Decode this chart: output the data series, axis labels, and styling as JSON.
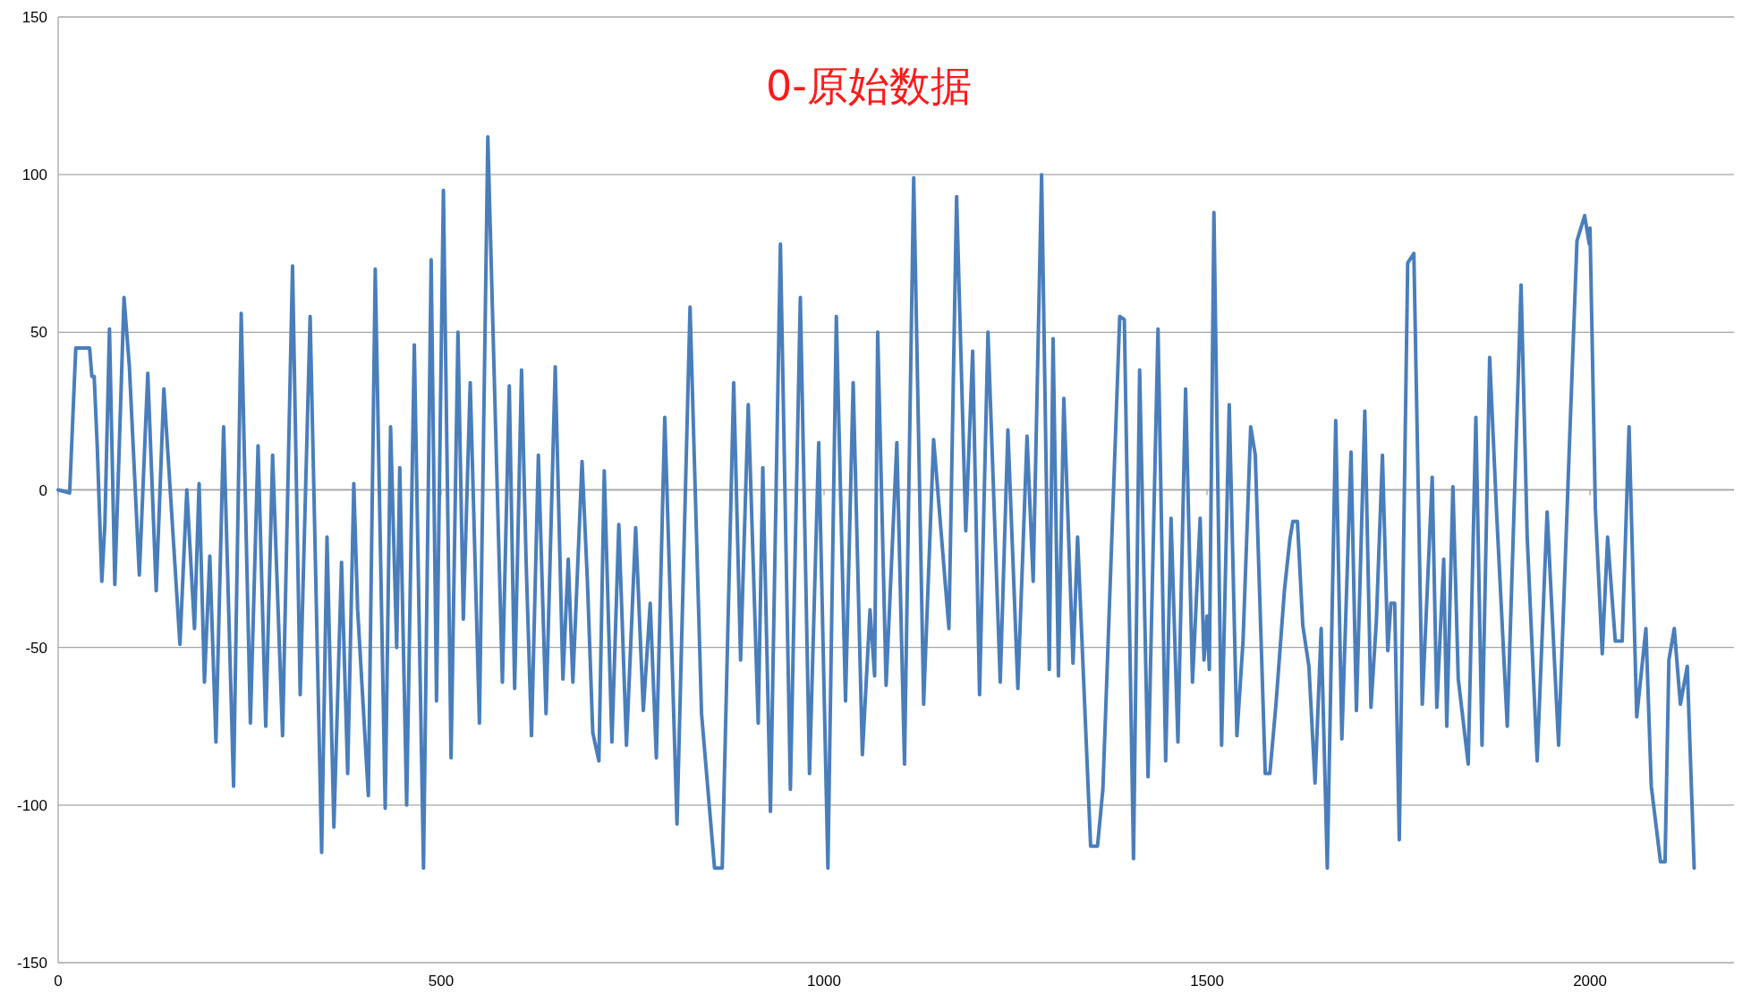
{
  "chart_data": {
    "type": "line",
    "title": "0-原始数据",
    "color": "#4a7ebb",
    "grid": "y",
    "line_style": "solid",
    "marker": "none",
    "xlim": [
      0,
      2188
    ],
    "ylim": [
      -150,
      150
    ],
    "xticks": [
      0,
      500,
      1000,
      1500,
      2000
    ],
    "yticks": [
      -150,
      -100,
      -50,
      0,
      50,
      100,
      150
    ],
    "x": [
      0,
      15,
      23,
      41,
      44,
      47,
      51,
      57,
      61,
      67,
      74,
      86,
      93,
      106,
      117,
      128,
      138,
      159,
      168,
      178,
      184,
      191,
      198,
      206,
      216,
      229,
      239,
      251,
      261,
      271,
      280,
      293,
      306,
      316,
      329,
      344,
      351,
      360,
      370,
      378,
      386,
      391,
      405,
      414,
      427,
      434,
      442,
      446,
      455,
      465,
      477,
      487,
      494,
      503,
      513,
      522,
      529,
      538,
      550,
      561,
      580,
      589,
      596,
      605,
      611,
      618,
      627,
      637,
      649,
      659,
      666,
      672,
      684,
      691,
      698,
      706,
      713,
      723,
      732,
      742,
      754,
      764,
      773,
      781,
      792,
      808,
      825,
      840,
      857,
      867,
      882,
      891,
      901,
      914,
      920,
      930,
      943,
      956,
      969,
      981,
      993,
      1005,
      1016,
      1028,
      1038,
      1050,
      1060,
      1066,
      1070,
      1081,
      1095,
      1105,
      1117,
      1130,
      1143,
      1163,
      1173,
      1185,
      1194,
      1203,
      1214,
      1230,
      1240,
      1253,
      1265,
      1273,
      1284,
      1294,
      1299,
      1306,
      1313,
      1325,
      1331,
      1348,
      1357,
      1364,
      1386,
      1392,
      1404,
      1412,
      1423,
      1436,
      1446,
      1453,
      1462,
      1472,
      1481,
      1491,
      1496,
      1500,
      1503,
      1509,
      1519,
      1529,
      1539,
      1547,
      1557,
      1563,
      1576,
      1582,
      1590,
      1601,
      1608,
      1612,
      1618,
      1625,
      1633,
      1641,
      1649,
      1657,
      1668,
      1676,
      1688,
      1695,
      1706,
      1714,
      1721,
      1729,
      1736,
      1740,
      1745,
      1751,
      1762,
      1770,
      1781,
      1794,
      1800,
      1809,
      1813,
      1821,
      1828,
      1841,
      1851,
      1859,
      1869,
      1878,
      1892,
      1910,
      1918,
      1931,
      1944,
      1959,
      1974,
      1983,
      1993,
      1999,
      2000,
      2007,
      2016,
      2023,
      2033,
      2042,
      2051,
      2061,
      2073,
      2080,
      2092,
      2098,
      2103,
      2110,
      2118,
      2127,
      2136
    ],
    "values": [
      0,
      -1,
      45,
      45,
      36,
      36,
      14,
      -29,
      -11,
      51,
      -30,
      61,
      39,
      -27,
      37,
      -32,
      32,
      -49,
      0,
      -44,
      2,
      -61,
      -21,
      -80,
      20,
      -94,
      56,
      -74,
      14,
      -75,
      11,
      -78,
      71,
      -65,
      55,
      -115,
      -15,
      -107,
      -23,
      -90,
      2,
      -38,
      -97,
      70,
      -101,
      20,
      -50,
      7,
      -100,
      46,
      -120,
      73,
      -67,
      95,
      -85,
      50,
      -41,
      34,
      -74,
      112,
      -61,
      33,
      -63,
      38,
      -23,
      -78,
      11,
      -71,
      39,
      -60,
      -22,
      -61,
      9,
      -29,
      -77,
      -86,
      6,
      -80,
      -11,
      -81,
      -12,
      -70,
      -36,
      -85,
      23,
      -106,
      58,
      -71,
      -120,
      -120,
      34,
      -54,
      27,
      -74,
      7,
      -102,
      78,
      -95,
      61,
      -90,
      15,
      -120,
      55,
      -67,
      34,
      -84,
      -38,
      -59,
      50,
      -62,
      15,
      -87,
      99,
      -68,
      16,
      -44,
      93,
      -13,
      44,
      -65,
      50,
      -61,
      19,
      -63,
      17,
      -29,
      100,
      -57,
      48,
      -59,
      29,
      -55,
      -15,
      -113,
      -113,
      -95,
      55,
      54,
      -117,
      38,
      -91,
      51,
      -86,
      -9,
      -80,
      32,
      -61,
      -9,
      -54,
      -40,
      -57,
      88,
      -81,
      27,
      -78,
      -48,
      20,
      11,
      -90,
      -90,
      -68,
      -32,
      -16,
      -10,
      -10,
      -43,
      -56,
      -93,
      -44,
      -120,
      22,
      -79,
      12,
      -70,
      25,
      -69,
      -42,
      11,
      -51,
      -36,
      -36,
      -111,
      72,
      75,
      -68,
      4,
      -69,
      -22,
      -75,
      1,
      -60,
      -87,
      23,
      -81,
      42,
      -7,
      -75,
      65,
      -15,
      -86,
      -7,
      -81,
      20,
      79,
      87,
      78,
      83,
      -6,
      -52,
      -15,
      -48,
      -48,
      20,
      -72,
      -44,
      -94,
      -118,
      -118,
      -54,
      -44,
      -68,
      -56,
      -120
    ]
  }
}
